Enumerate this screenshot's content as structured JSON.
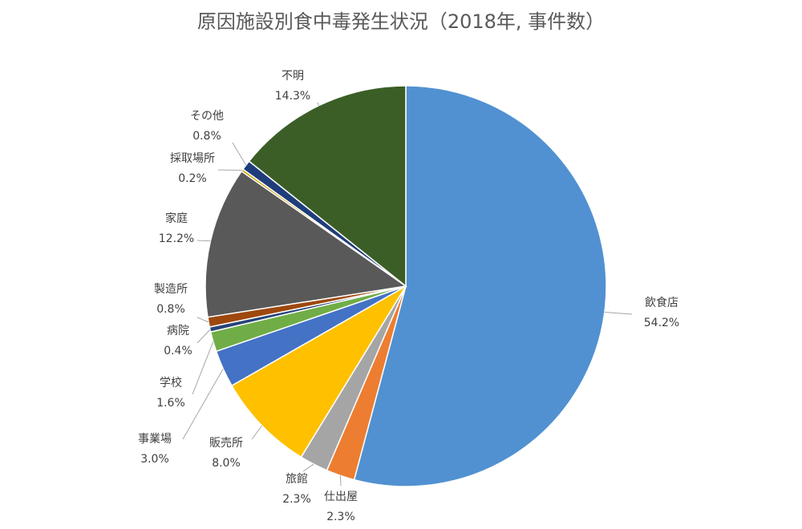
{
  "chart_data": {
    "type": "pie",
    "title": "原因施設別食中毒発生状況（2018年, 事件数）",
    "categories": [
      "飲食店",
      "仕出屋",
      "旅館",
      "販売所",
      "事業場",
      "学校",
      "病院",
      "製造所",
      "家庭",
      "採取場所",
      "その他",
      "不明"
    ],
    "values": [
      54.2,
      2.3,
      2.3,
      8.0,
      3.0,
      1.6,
      0.4,
      0.8,
      12.2,
      0.2,
      0.8,
      14.3
    ],
    "value_labels": [
      "54.2%",
      "2.3%",
      "2.3%",
      "8.0%",
      "3.0%",
      "1.6%",
      "0.4%",
      "0.8%",
      "12.2%",
      "0.2%",
      "0.8%",
      "14.3%"
    ],
    "colors": [
      "#5191d1",
      "#ed7d31",
      "#a5a5a5",
      "#ffc000",
      "#4472c4",
      "#70ad47",
      "#264478",
      "#9e480e",
      "#595959",
      "#c9a400",
      "#1f3d7a",
      "#3b5e27"
    ]
  }
}
